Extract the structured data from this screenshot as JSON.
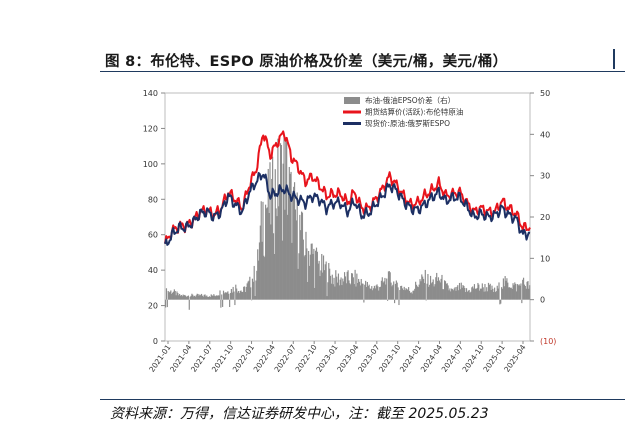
{
  "figure": {
    "title": "图 8：布伦特、ESPO 原油价格及价差（美元/桶，美元/桶）",
    "source": "资料来源：万得，信达证券研发中心，注：截至 2025.05.23"
  },
  "colors": {
    "brent": "#e8141c",
    "espo": "#1c2f63",
    "spread": "#8c8c8c",
    "neg_label": "#c0392b"
  },
  "chart_data": {
    "type": "line",
    "title": "",
    "legend_position": "top-right",
    "x_tick_labels": [
      "2021-01",
      "2021-04",
      "2021-07",
      "2021-10",
      "2022-01",
      "2022-04",
      "2022-07",
      "2022-10",
      "2023-01",
      "2023-04",
      "2023-07",
      "2023-10",
      "2024-01",
      "2024-04",
      "2024-07",
      "2024-10",
      "2025-01",
      "2025-04"
    ],
    "y_left": {
      "range": [
        0,
        140
      ],
      "ticks": [
        0,
        20,
        40,
        60,
        80,
        100,
        120,
        140
      ],
      "tick_labels": [
        "0",
        "20",
        "40",
        "60",
        "80",
        "100",
        "120",
        "140"
      ]
    },
    "y_right": {
      "range": [
        -10,
        50
      ],
      "ticks": [
        -10,
        0,
        10,
        20,
        30,
        40,
        50
      ],
      "tick_labels": [
        "(10)",
        "0",
        "10",
        "20",
        "30",
        "40",
        "50"
      ]
    },
    "x": [
      "2021-01",
      "2021-02",
      "2021-03",
      "2021-04",
      "2021-05",
      "2021-06",
      "2021-07",
      "2021-08",
      "2021-09",
      "2021-10",
      "2021-11",
      "2021-12",
      "2022-01",
      "2022-02",
      "2022-03",
      "2022-04",
      "2022-05",
      "2022-06",
      "2022-07",
      "2022-08",
      "2022-09",
      "2022-10",
      "2022-11",
      "2022-12",
      "2023-01",
      "2023-02",
      "2023-03",
      "2023-04",
      "2023-05",
      "2023-06",
      "2023-07",
      "2023-08",
      "2023-09",
      "2023-10",
      "2023-11",
      "2023-12",
      "2024-01",
      "2024-02",
      "2024-03",
      "2024-04",
      "2024-05",
      "2024-06",
      "2024-07",
      "2024-08",
      "2024-09",
      "2024-10",
      "2024-11",
      "2024-12",
      "2025-01",
      "2025-02",
      "2025-03",
      "2025-04",
      "2025-05"
    ],
    "series": [
      {
        "name": "期货结算价(活跃):布伦特原油",
        "axis": "left",
        "kind": "line",
        "values": [
          55,
          62,
          65,
          65,
          68,
          73,
          74,
          71,
          75,
          84,
          80,
          75,
          88,
          97,
          118,
          105,
          112,
          118,
          104,
          98,
          90,
          93,
          88,
          82,
          83,
          83,
          78,
          84,
          75,
          75,
          80,
          86,
          93,
          88,
          82,
          77,
          78,
          82,
          85,
          89,
          82,
          83,
          84,
          78,
          73,
          75,
          73,
          73,
          79,
          75,
          72,
          64,
          64
        ]
      },
      {
        "name": "现货价:原油:俄罗斯ESPO",
        "axis": "left",
        "kind": "line",
        "values": [
          53,
          60,
          64,
          64,
          67,
          72,
          73,
          70,
          73,
          82,
          77,
          73,
          84,
          90,
          95,
          82,
          84,
          86,
          82,
          80,
          78,
          82,
          80,
          75,
          78,
          78,
          73,
          79,
          71,
          72,
          77,
          82,
          88,
          85,
          79,
          75,
          74,
          77,
          81,
          84,
          79,
          81,
          81,
          76,
          70,
          72,
          70,
          71,
          75,
          71,
          69,
          60,
          61
        ]
      },
      {
        "name": "布油-俄油EPSO价差（右）",
        "axis": "right",
        "kind": "area",
        "values": [
          2,
          2,
          1,
          1,
          1,
          1,
          1,
          1,
          2,
          2,
          3,
          2,
          4,
          7,
          23,
          23,
          28,
          32,
          22,
          18,
          12,
          11,
          8,
          7,
          5,
          5,
          5,
          5,
          4,
          3,
          3,
          4,
          5,
          3,
          3,
          2,
          4,
          5,
          4,
          5,
          3,
          2,
          3,
          2,
          3,
          3,
          3,
          2,
          4,
          4,
          3,
          4,
          3
        ]
      }
    ]
  }
}
